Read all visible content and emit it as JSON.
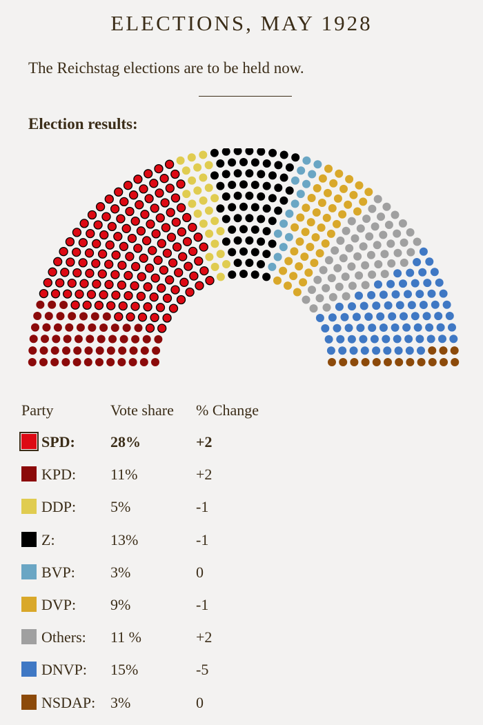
{
  "header": {
    "title": "ELECTIONS, MAY 1928"
  },
  "intro": "The Reichstag elections are to be held now.",
  "results_heading": "Election results:",
  "table": {
    "columns": [
      "Party",
      "Vote share",
      "% Change"
    ],
    "parties": [
      {
        "name": "SPD:",
        "color": "#dd0a14",
        "share": 28,
        "share_label": "28%",
        "change": "+2"
      },
      {
        "name": "KPD:",
        "color": "#8b0a0a",
        "share": 11,
        "share_label": "11%",
        "change": "+2"
      },
      {
        "name": "DDP:",
        "color": "#e0cc50",
        "share": 5,
        "share_label": "5%",
        "change": "-1"
      },
      {
        "name": "Z:",
        "color": "#000000",
        "share": 13,
        "share_label": "13%",
        "change": "-1"
      },
      {
        "name": "BVP:",
        "color": "#6aa6c4",
        "share": 3,
        "share_label": "3%",
        "change": "0"
      },
      {
        "name": "DVP:",
        "color": "#d9a82a",
        "share": 9,
        "share_label": "9%",
        "change": "-1"
      },
      {
        "name": "Others:",
        "color": "#a0a0a0",
        "share": 11,
        "share_label": "11 %",
        "change": "+2"
      },
      {
        "name": "DNVP:",
        "color": "#3f78c4",
        "share": 15,
        "share_label": "15%",
        "change": "-5"
      },
      {
        "name": "NSDAP:",
        "color": "#8c4a0a",
        "share": 3,
        "share_label": "3%",
        "change": "0"
      }
    ]
  }
}
